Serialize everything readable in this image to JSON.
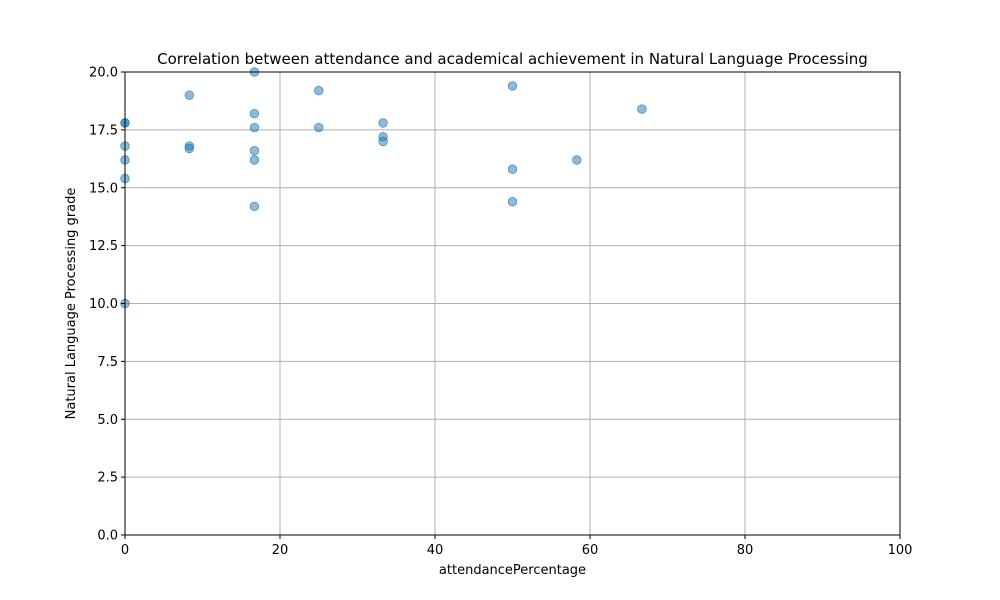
{
  "chart_data": {
    "type": "scatter",
    "title": "Correlation between attendance and academical achievement in Natural Language Processing",
    "xlabel": "attendancePercentage",
    "ylabel": "Natural Language Processing grade",
    "xlim": [
      0,
      100
    ],
    "ylim": [
      0,
      20
    ],
    "xticks": [
      "0",
      "20",
      "40",
      "60",
      "80",
      "100"
    ],
    "yticks": [
      "0.0",
      "2.5",
      "5.0",
      "7.5",
      "10.0",
      "12.5",
      "15.0",
      "17.5",
      "20.0"
    ],
    "grid": true,
    "marker_color": "#1f77b4",
    "marker_alpha": 0.5,
    "points": [
      {
        "x": 0,
        "y": 17.8
      },
      {
        "x": 0,
        "y": 17.8
      },
      {
        "x": 0,
        "y": 16.8
      },
      {
        "x": 0,
        "y": 16.2
      },
      {
        "x": 0,
        "y": 15.4
      },
      {
        "x": 0,
        "y": 10.0
      },
      {
        "x": 8.3,
        "y": 19.0
      },
      {
        "x": 8.3,
        "y": 16.8
      },
      {
        "x": 8.3,
        "y": 16.7
      },
      {
        "x": 16.7,
        "y": 20.0
      },
      {
        "x": 16.7,
        "y": 18.2
      },
      {
        "x": 16.7,
        "y": 17.6
      },
      {
        "x": 16.7,
        "y": 16.6
      },
      {
        "x": 16.7,
        "y": 16.2
      },
      {
        "x": 16.7,
        "y": 14.2
      },
      {
        "x": 25.0,
        "y": 19.2
      },
      {
        "x": 25.0,
        "y": 17.6
      },
      {
        "x": 33.3,
        "y": 17.8
      },
      {
        "x": 33.3,
        "y": 17.2
      },
      {
        "x": 33.3,
        "y": 17.0
      },
      {
        "x": 50.0,
        "y": 19.4
      },
      {
        "x": 50.0,
        "y": 15.8
      },
      {
        "x": 50.0,
        "y": 14.4
      },
      {
        "x": 58.3,
        "y": 16.2
      },
      {
        "x": 66.7,
        "y": 18.4
      }
    ]
  }
}
